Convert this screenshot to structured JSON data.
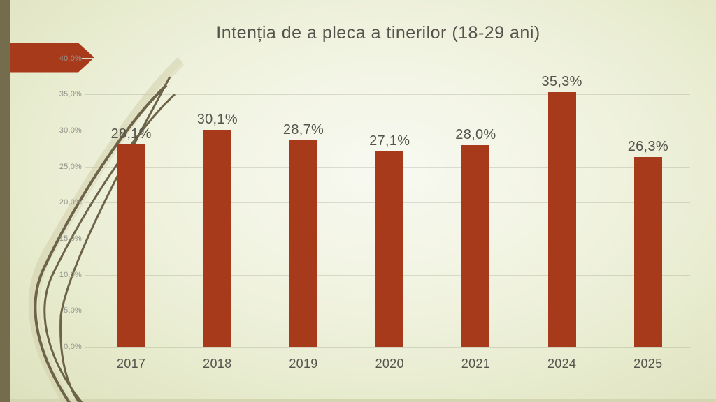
{
  "decor": {
    "arrow_color": "#A83A1C",
    "stripe_color": "#746C4D",
    "bottom_strip_color": "#D4D6B2",
    "curve_dark_color": "#6C6349",
    "curve_light_color": "#CFCBA8",
    "curve_light_soft_color": "#DCD9BC",
    "dash_over_arrow_color": "#ECEADE"
  },
  "chart_data": {
    "type": "bar",
    "title": "Intenția de a pleca a tinerilor (18-29 ani)",
    "categories": [
      "2017",
      "2018",
      "2019",
      "2020",
      "2021",
      "2024",
      "2025"
    ],
    "values": [
      28.1,
      30.1,
      28.7,
      27.1,
      28.0,
      35.3,
      26.3
    ],
    "data_labels": [
      "28,1%",
      "30,1%",
      "28,7%",
      "27,1%",
      "28,0%",
      "35,3%",
      "26,3%"
    ],
    "y_tick_values": [
      0,
      5,
      10,
      15,
      20,
      25,
      30,
      35,
      40
    ],
    "y_tick_labels": [
      "0,0%",
      "5,0%",
      "10,0%",
      "15,0%",
      "20,0%",
      "25,0%",
      "30,0%",
      "35,0%",
      "40,0%"
    ],
    "ylim": [
      0,
      40
    ],
    "xlabel": "",
    "ylabel": "",
    "grid": true,
    "legend": false,
    "bar_color": "#A83A1C",
    "label_color": "#55544C",
    "tick_color": "#94928A",
    "gridline_color": "rgba(125,120,100,0.22)"
  }
}
